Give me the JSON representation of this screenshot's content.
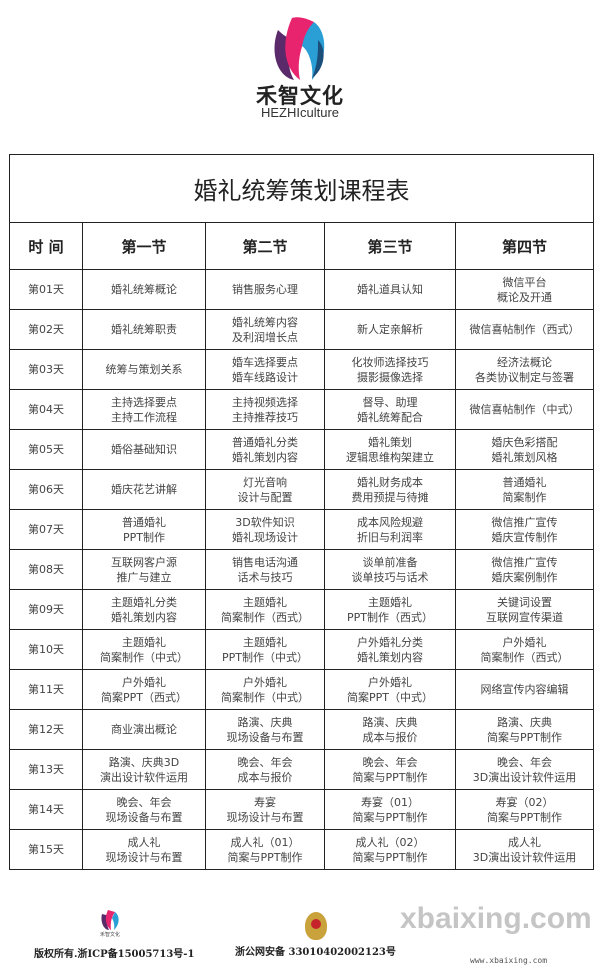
{
  "brand": {
    "name_cn": "禾智文化",
    "name_en": "HEZHIculture",
    "colors": {
      "pink": "#e8246f",
      "blue": "#2a9fd6",
      "purple": "#5a2a6a"
    }
  },
  "table": {
    "title": "婚礼统筹策划课程表",
    "headers": [
      "时 间",
      "第一节",
      "第二节",
      "第三节",
      "第四节"
    ],
    "rows": [
      [
        "第01天",
        "婚礼统筹概论",
        "销售服务心理",
        "婚礼道具认知",
        "微信平台\n概论及开通"
      ],
      [
        "第02天",
        "婚礼统筹职责",
        "婚礼统筹内容\n及利润增长点",
        "新人定亲解析",
        "微信喜帖制作（西式）"
      ],
      [
        "第03天",
        "统筹与策划关系",
        "婚车选择要点\n婚车线路设计",
        "化妆师选择技巧\n摄影摄像选择",
        "经济法概论\n各类协议制定与签署"
      ],
      [
        "第04天",
        "主持选择要点\n主持工作流程",
        "主持视频选择\n主持推荐技巧",
        "督导、助理\n婚礼统筹配合",
        "微信喜帖制作（中式）"
      ],
      [
        "第05天",
        "婚俗基础知识",
        "普通婚礼分类\n婚礼策划内容",
        "婚礼策划\n逻辑思维构架建立",
        "婚庆色彩搭配\n婚礼策划风格"
      ],
      [
        "第06天",
        "婚庆花艺讲解",
        "灯光音响\n设计与配置",
        "婚礼财务成本\n费用预提与待摊",
        "普通婚礼\n简案制作"
      ],
      [
        "第07天",
        "普通婚礼\nPPT制作",
        "3D软件知识\n婚礼现场设计",
        "成本风险规避\n折旧与利润率",
        "微信推广宣传\n婚庆宣传制作"
      ],
      [
        "第08天",
        "互联网客户源\n推广与建立",
        "销售电话沟通\n话术与技巧",
        "谈单前准备\n谈单技巧与话术",
        "微信推广宣传\n婚庆案例制作"
      ],
      [
        "第09天",
        "主题婚礼分类\n婚礼策划内容",
        "主题婚礼\n简案制作（西式）",
        "主题婚礼\nPPT制作（西式）",
        "关键词设置\n互联网宣传渠道"
      ],
      [
        "第10天",
        "主题婚礼\n简案制作（中式）",
        "主题婚礼\nPPT制作（中式）",
        "户外婚礼分类\n婚礼策划内容",
        "户外婚礼\n简案制作（西式）"
      ],
      [
        "第11天",
        "户外婚礼\n简案PPT（西式）",
        "户外婚礼\n简案制作（中式）",
        "户外婚礼\n简案PPT（中式）",
        "网络宣传内容编辑"
      ],
      [
        "第12天",
        "商业演出概论",
        "路演、庆典\n现场设备与布置",
        "路演、庆典\n成本与报价",
        "路演、庆典\n简案与PPT制作"
      ],
      [
        "第13天",
        "路演、庆典3D\n演出设计软件运用",
        "晚会、年会\n成本与报价",
        "晚会、年会\n简案与PPT制作",
        "晚会、年会\n3D演出设计软件运用"
      ],
      [
        "第14天",
        "晚会、年会\n现场设备与布置",
        "寿宴\n现场设计与布置",
        "寿宴（01）\n简案与PPT制作",
        "寿宴（02）\n简案与PPT制作"
      ],
      [
        "第15天",
        "成人礼\n现场设计与布置",
        "成人礼（01）\n简案与PPT制作",
        "成人礼（02）\n简案与PPT制作",
        "成人礼\n3D演出设计软件运用"
      ]
    ]
  },
  "footer": {
    "brand_small": "禾智文化",
    "copyright": "版权所有.浙ICP备15005713号-1",
    "police_record": "浙公网安备 33010402002123号",
    "watermark": "xbaixing.com",
    "watermark_url": "www.xbaixing.com"
  }
}
